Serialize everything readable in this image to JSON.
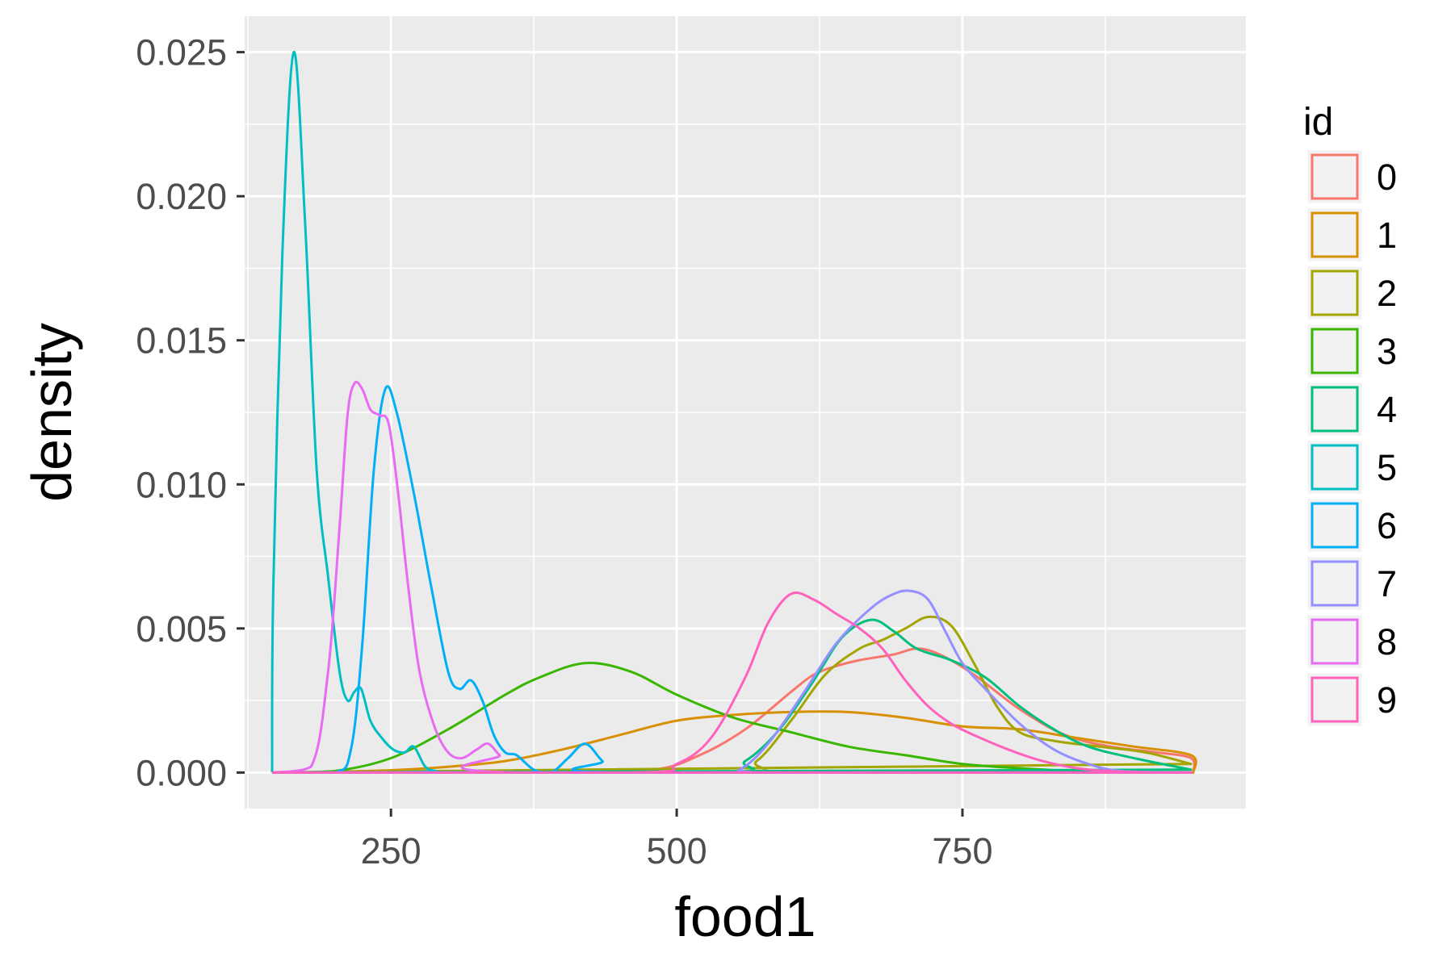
{
  "chart_data": {
    "type": "line",
    "title": "",
    "xlabel": "food1",
    "ylabel": "density",
    "xlim": [
      122,
      998
    ],
    "ylim": [
      -0.00125,
      0.02625
    ],
    "x_ticks": [
      250,
      500,
      750
    ],
    "x_tick_labels": [
      "250",
      "500",
      "750"
    ],
    "x_minor_ticks": [
      125,
      375,
      625,
      875
    ],
    "y_ticks": [
      0,
      0.005,
      0.01,
      0.015,
      0.02,
      0.025
    ],
    "y_tick_labels": [
      "0.000",
      "0.005",
      "0.010",
      "0.015",
      "0.020",
      "0.025"
    ],
    "y_minor_ticks": [
      0.0025,
      0.0075,
      0.0125,
      0.0175,
      0.0225
    ],
    "grid": true,
    "legend": {
      "title": "id",
      "position": "right"
    },
    "series": [
      {
        "name": "0",
        "color": "#F8766D",
        "x": [
          146,
          400,
          480,
          520,
          560,
          600,
          620,
          640,
          660,
          690,
          710,
          730,
          760,
          800,
          840,
          880,
          920,
          950,
          952
        ],
        "y": [
          0,
          0,
          0.0001,
          0.0006,
          0.0015,
          0.0028,
          0.0034,
          0.0037,
          0.0039,
          0.0041,
          0.0043,
          0.0041,
          0.0034,
          0.0022,
          0.0013,
          0.0009,
          0.0007,
          0.0005,
          0
        ]
      },
      {
        "name": "1",
        "color": "#D89000",
        "x": [
          146,
          200,
          250,
          300,
          350,
          400,
          450,
          500,
          550,
          600,
          650,
          700,
          750,
          800,
          850,
          900,
          950,
          952
        ],
        "y": [
          0,
          3e-05,
          8e-05,
          0.0002,
          0.0004,
          0.0008,
          0.0013,
          0.0018,
          0.002,
          0.0021,
          0.0021,
          0.0019,
          0.0016,
          0.0015,
          0.0012,
          0.0009,
          0.0006,
          0
        ]
      },
      {
        "name": "2",
        "color": "#A3A500",
        "x": [
          146,
          540,
          570,
          600,
          630,
          660,
          680,
          700,
          720,
          740,
          760,
          780,
          800,
          830,
          870,
          910,
          950
        ],
        "y": [
          0,
          0,
          0.0004,
          0.0018,
          0.0034,
          0.0043,
          0.0046,
          0.005,
          0.0054,
          0.0051,
          0.0038,
          0.0023,
          0.0014,
          0.0011,
          0.0009,
          0.0007,
          0.0003
        ]
      },
      {
        "name": "3",
        "color": "#39B600",
        "x": [
          146,
          200,
          250,
          300,
          350,
          380,
          420,
          460,
          500,
          550,
          600,
          650,
          700,
          750,
          800,
          850,
          900,
          950
        ],
        "y": [
          0,
          5e-05,
          0.0005,
          0.0015,
          0.0027,
          0.0033,
          0.0038,
          0.0035,
          0.0027,
          0.0019,
          0.0014,
          0.0009,
          0.0006,
          0.0003,
          0.00015,
          5e-05,
          1e-05,
          0
        ]
      },
      {
        "name": "4",
        "color": "#00BF7D",
        "x": [
          146,
          530,
          560,
          590,
          620,
          645,
          670,
          690,
          710,
          740,
          770,
          800,
          830,
          860,
          900,
          950
        ],
        "y": [
          0,
          0,
          0.0004,
          0.0015,
          0.0032,
          0.0047,
          0.0053,
          0.0049,
          0.0043,
          0.0039,
          0.0033,
          0.0023,
          0.0015,
          0.0009,
          0.0005,
          0.0001
        ]
      },
      {
        "name": "5",
        "color": "#00BFC4",
        "x": [
          146,
          147,
          155,
          165,
          175,
          185,
          195,
          205,
          212,
          218,
          224,
          232,
          242,
          252,
          262,
          270,
          280,
          290,
          300,
          950
        ],
        "y": [
          0,
          0.0063,
          0.018,
          0.025,
          0.019,
          0.0105,
          0.0068,
          0.0035,
          0.0025,
          0.0028,
          0.0029,
          0.0018,
          0.0012,
          0.0008,
          0.0007,
          0.0009,
          0.0002,
          5e-05,
          0,
          0
        ]
      },
      {
        "name": "6",
        "color": "#00B0F6",
        "x": [
          146,
          200,
          215,
          225,
          235,
          245,
          255,
          270,
          285,
          300,
          310,
          320,
          330,
          340,
          350,
          360,
          375,
          390,
          405,
          420,
          435,
          450,
          950
        ],
        "y": [
          0,
          0,
          0.0008,
          0.0045,
          0.0105,
          0.0133,
          0.0125,
          0.0097,
          0.0065,
          0.0035,
          0.0029,
          0.0032,
          0.0025,
          0.0013,
          0.0007,
          0.0006,
          0.0001,
          0,
          0.0005,
          0.001,
          0.0004,
          0,
          0
        ]
      },
      {
        "name": "7",
        "color": "#9590FF",
        "x": [
          146,
          530,
          555,
          580,
          610,
          640,
          670,
          690,
          705,
          720,
          735,
          750,
          770,
          800,
          830,
          860,
          890,
          950
        ],
        "y": [
          0,
          0,
          0.0001,
          0.001,
          0.0027,
          0.0045,
          0.0057,
          0.0062,
          0.0063,
          0.006,
          0.0049,
          0.0038,
          0.0029,
          0.0017,
          0.0008,
          0.0003,
          5e-05,
          0
        ]
      },
      {
        "name": "8",
        "color": "#E76BF3",
        "x": [
          146,
          180,
          195,
          205,
          212,
          218,
          225,
          232,
          240,
          248,
          256,
          265,
          275,
          288,
          300,
          312,
          325,
          335,
          345,
          360,
          950
        ],
        "y": [
          0,
          0.0002,
          0.0035,
          0.0085,
          0.0124,
          0.0135,
          0.0133,
          0.0126,
          0.0124,
          0.0121,
          0.0098,
          0.0065,
          0.0035,
          0.0016,
          0.0007,
          0.0005,
          0.0008,
          0.001,
          0.0006,
          0,
          0
        ]
      },
      {
        "name": "9",
        "color": "#FF62BC",
        "x": [
          146,
          460,
          500,
          530,
          560,
          580,
          600,
          620,
          640,
          660,
          680,
          700,
          720,
          740,
          760,
          790,
          820,
          850,
          880,
          920,
          950
        ],
        "y": [
          0,
          0,
          0.0003,
          0.0012,
          0.0033,
          0.0052,
          0.0062,
          0.006,
          0.0055,
          0.005,
          0.0043,
          0.0032,
          0.0023,
          0.0017,
          0.0013,
          0.0008,
          0.0004,
          0.00015,
          5e-05,
          0,
          0
        ]
      }
    ]
  }
}
